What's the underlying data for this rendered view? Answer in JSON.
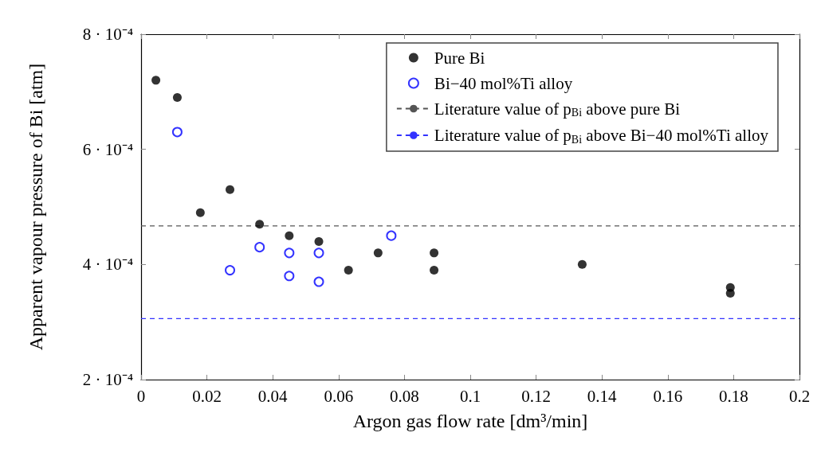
{
  "chart_data": {
    "type": "scatter",
    "xlabel": "Argon gas flow rate [dm³/min]",
    "ylabel": "Apparent vapour pressure of Bi [atm]",
    "series": [
      {
        "name": "Pure Bi",
        "color": "#000000",
        "x": [
          0.0045,
          0.011,
          0.018,
          0.027,
          0.036,
          0.045,
          0.054,
          0.063,
          0.072,
          0.089,
          0.089,
          0.134,
          0.179,
          0.179
        ],
        "values": [
          0.00072,
          0.00069,
          0.00049,
          0.00053,
          0.00047,
          0.00045,
          0.00044,
          0.00039,
          0.00042,
          0.00042,
          0.00039,
          0.0004,
          0.00036,
          0.00035
        ]
      },
      {
        "name": "Bi−40 mol%Ti alloy",
        "color": "#0000ff",
        "x": [
          0.011,
          0.027,
          0.036,
          0.045,
          0.045,
          0.054,
          0.054,
          0.076
        ],
        "values": [
          0.00063,
          0.00039,
          0.00043,
          0.00042,
          0.00038,
          0.00042,
          0.00037,
          0.00045
        ]
      }
    ],
    "ref_lines": [
      {
        "axis": "y",
        "value": 0.000467,
        "label": "Literature value of p$_{Bi}$ above pure Bi",
        "color": "#555555",
        "line_style": "dashed"
      },
      {
        "axis": "y",
        "value": 0.000306,
        "label": "Literature value of p$_{Bi}$ above Bi−40 mol%Ti alloy",
        "color": "#3333ff",
        "line_style": "dashed"
      }
    ],
    "xlim": [
      0,
      0.2
    ],
    "xticks": [
      0,
      0.02,
      0.04,
      0.06,
      0.08,
      0.1,
      0.12,
      0.14,
      0.16,
      0.18,
      0.2
    ],
    "ylim": [
      0.0002,
      0.0008
    ],
    "yticks": [
      {
        "value": 0.0002,
        "label": "2 · 10⁻⁴"
      },
      {
        "value": 0.0004,
        "label": "4 · 10⁻⁴"
      },
      {
        "value": 0.0006,
        "label": "6 · 10⁻⁴"
      },
      {
        "value": 0.0008,
        "label": "8 · 10⁻⁴"
      }
    ],
    "marker": "circle",
    "grid": false,
    "legend": "top right"
  }
}
